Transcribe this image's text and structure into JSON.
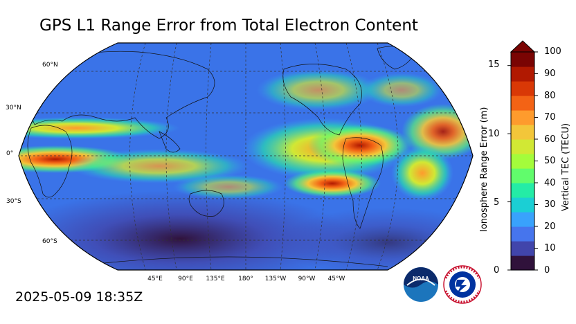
{
  "title": "GPS L1 Range Error from Total Electron Content",
  "timestamp": "2025-05-09 18:35Z",
  "map": {
    "projection": "robinson",
    "lat_labels": [
      "60°N",
      "30°N",
      "0°",
      "30°S",
      "60°S"
    ],
    "lon_labels": [
      "45°E",
      "90°E",
      "135°E",
      "180°",
      "135°W",
      "90°W",
      "45°W"
    ]
  },
  "colorbar": {
    "left_label": "Ionosphere Range Error (m)",
    "left_ticks": [
      "0",
      "5",
      "10",
      "15"
    ],
    "right_label": "Vertical TEC (TECU)",
    "right_ticks": [
      "0",
      "10",
      "20",
      "30",
      "40",
      "50",
      "60",
      "70",
      "80",
      "90",
      "100"
    ],
    "extend": "max",
    "colors": [
      "#30123b",
      "#4145ab",
      "#4675ed",
      "#39a2fc",
      "#1bcfd4",
      "#24eca6",
      "#61fc6c",
      "#a4fc3b",
      "#d1e834",
      "#f3c63a",
      "#fe9b2d",
      "#f36315",
      "#d93806",
      "#b11901",
      "#7a0403"
    ]
  },
  "logos": [
    "NOAA",
    "NATIONAL WEATHER SERVICE"
  ]
}
